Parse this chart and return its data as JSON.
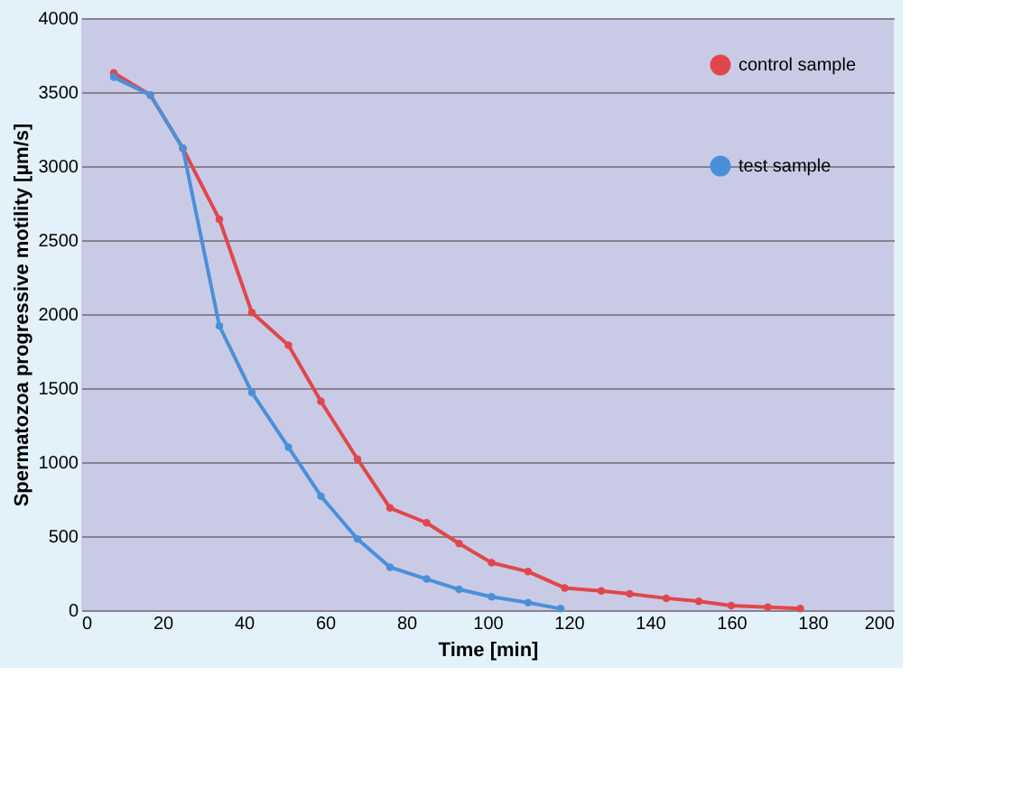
{
  "chart_data": {
    "type": "line",
    "xlabel": "Time [min]",
    "ylabel": "Spermatozoa progressive motility [µm/s]",
    "xlim": [
      0,
      200
    ],
    "xticks": [
      0,
      20,
      40,
      60,
      80,
      100,
      120,
      140,
      160,
      180,
      200
    ],
    "ylim": [
      0,
      4000
    ],
    "yticks": [
      0,
      500,
      1000,
      1500,
      2000,
      2500,
      3000,
      3500,
      4000
    ],
    "grid": "y",
    "legend": "top right",
    "marker": "circle",
    "line_style": "solid",
    "series": [
      {
        "name": "control sample",
        "color": "#e0474c",
        "x": [
          8,
          17,
          25,
          34,
          42,
          51,
          59,
          68,
          76,
          85,
          93,
          101,
          110,
          119,
          128,
          135,
          144,
          152,
          160,
          169,
          177
        ],
        "values": [
          3630,
          3480,
          3120,
          2640,
          2010,
          1790,
          1410,
          1020,
          690,
          590,
          450,
          320,
          260,
          150,
          130,
          110,
          80,
          60,
          30,
          20,
          10
        ]
      },
      {
        "name": "test sample",
        "color": "#4a90d9",
        "x": [
          8,
          17,
          25,
          34,
          42,
          51,
          59,
          68,
          76,
          85,
          93,
          101,
          110,
          118
        ],
        "values": [
          3600,
          3480,
          3120,
          1920,
          1470,
          1100,
          770,
          480,
          290,
          210,
          140,
          90,
          50,
          10
        ]
      }
    ]
  }
}
